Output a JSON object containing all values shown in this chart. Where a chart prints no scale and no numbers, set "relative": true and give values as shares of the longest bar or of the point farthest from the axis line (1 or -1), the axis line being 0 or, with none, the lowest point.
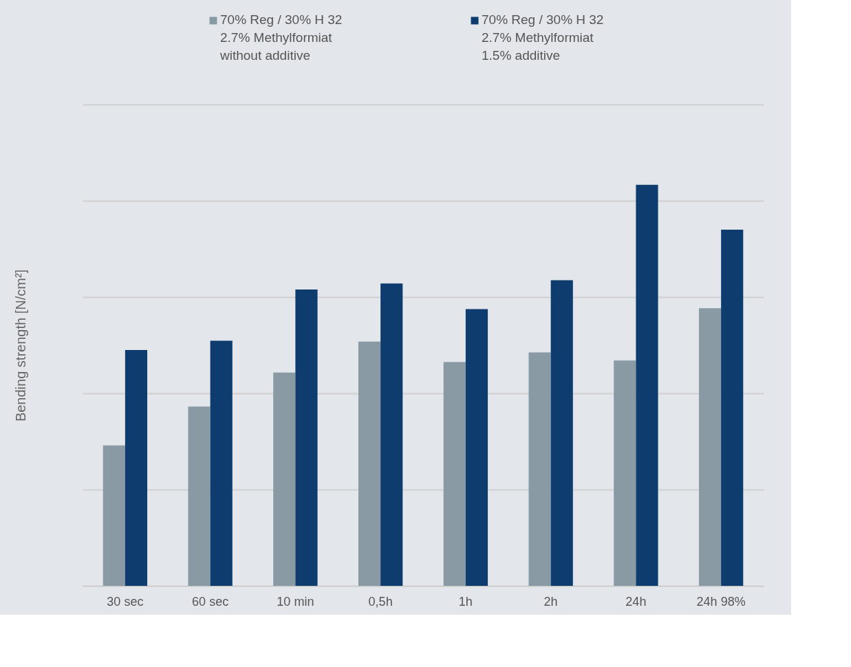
{
  "chart_data": {
    "type": "bar",
    "relative": true,
    "ylabel": "Bending strength  [N/cm²]",
    "categories": [
      "30 sec",
      "60 sec",
      "10 min",
      "0,5h",
      "1h",
      "2h",
      "24h",
      "24h 98%"
    ],
    "series": [
      {
        "name": "70% Reg / 30% H 32\n2.7% Methylformiat\nwithout additive",
        "color": "#8a9aa5",
        "values": [
          0.35,
          0.447,
          0.532,
          0.609,
          0.558,
          0.582,
          0.562,
          0.692
        ]
      },
      {
        "name": "70% Reg / 30% H 32\n2.7% Methylformiat\n1.5% additive",
        "color": "#0f3c6e",
        "values": [
          0.588,
          0.611,
          0.739,
          0.754,
          0.69,
          0.762,
          1,
          0.888
        ]
      }
    ],
    "legend": "top",
    "grid": "y"
  }
}
